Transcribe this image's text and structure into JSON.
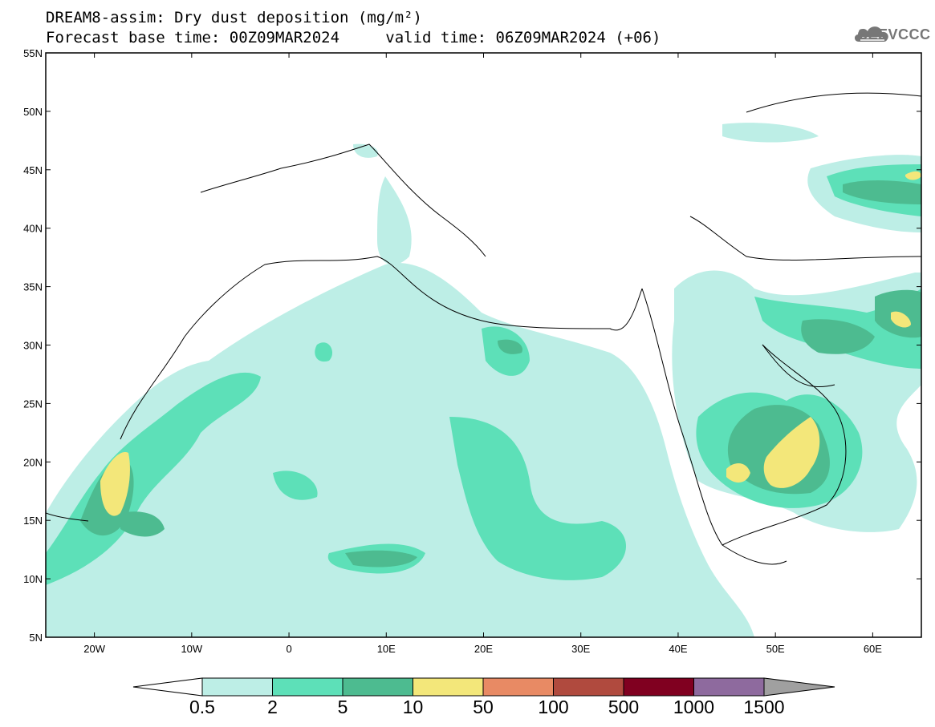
{
  "title": {
    "line1": "DREAM8-assim: Dry dust deposition (mg/m²)",
    "base_time": "Forecast base time: 00Z09MAR2024",
    "valid_time": "valid time: 06Z09MAR2024 (+06)"
  },
  "logo": {
    "text": "SEEVCCC",
    "icon": "cloud-icon"
  },
  "map": {
    "lon_range": [
      -25,
      65
    ],
    "lat_range": [
      5,
      55
    ],
    "lat_labels": [
      "55N",
      "50N",
      "45N",
      "40N",
      "35N",
      "30N",
      "25N",
      "20N",
      "15N",
      "10N",
      "5N"
    ],
    "lon_labels": [
      "20W",
      "10W",
      "0",
      "10E",
      "20E",
      "30E",
      "40E",
      "50E",
      "60E"
    ]
  },
  "colorbar": {
    "labels": [
      "0.5",
      "2",
      "5",
      "10",
      "50",
      "100",
      "500",
      "1000",
      "1500"
    ],
    "colors": [
      "#bdeee6",
      "#5de0b8",
      "#4dbb90",
      "#f3e77a",
      "#e88a64",
      "#b04a3e",
      "#800020",
      "#8e6a9e"
    ],
    "under_color": "#ffffff",
    "over_color": "#a0a0a0"
  }
}
